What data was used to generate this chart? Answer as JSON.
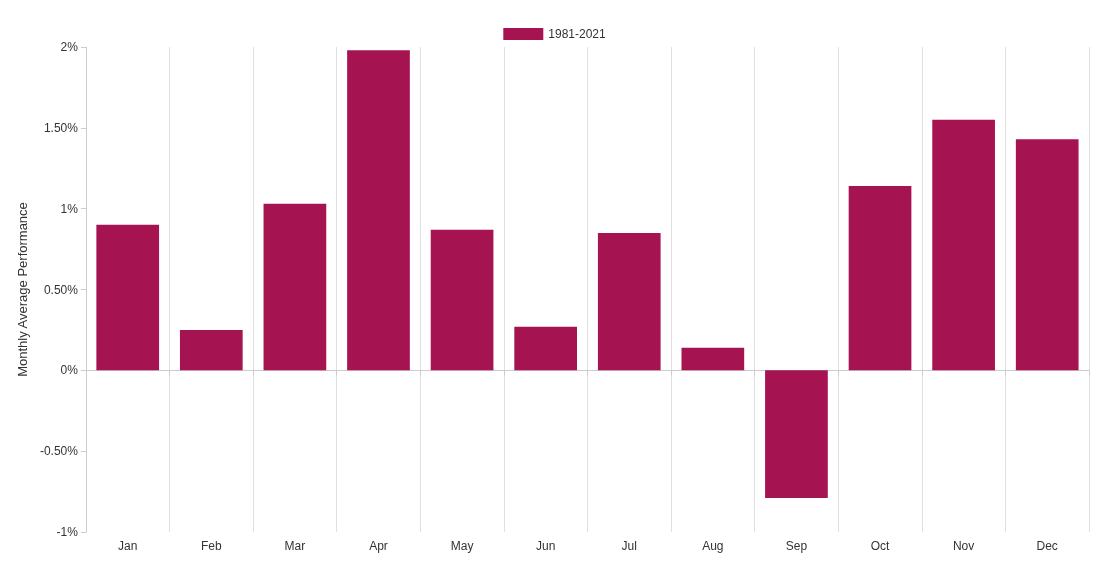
{
  "chart_data": {
    "type": "bar",
    "ylabel": "Monthly Average Performance",
    "categories": [
      "Jan",
      "Feb",
      "Mar",
      "Apr",
      "May",
      "Jun",
      "Jul",
      "Aug",
      "Sep",
      "Oct",
      "Nov",
      "Dec"
    ],
    "series": [
      {
        "name": "1981-2021",
        "color": "#a51351",
        "values": [
          0.9,
          0.25,
          1.03,
          1.98,
          0.87,
          0.27,
          0.85,
          0.14,
          -0.79,
          1.14,
          1.55,
          1.43
        ]
      }
    ],
    "ylim": [
      -1,
      2
    ],
    "yticks": [
      {
        "value": -1,
        "label": "-1%"
      },
      {
        "value": -0.5,
        "label": "-0.50%"
      },
      {
        "value": 0,
        "label": "0%"
      },
      {
        "value": 0.5,
        "label": "0.50%"
      },
      {
        "value": 1,
        "label": "1%"
      },
      {
        "value": 1.5,
        "label": "1.50%"
      },
      {
        "value": 2,
        "label": "2%"
      }
    ],
    "grid": "x",
    "legend": "top"
  }
}
